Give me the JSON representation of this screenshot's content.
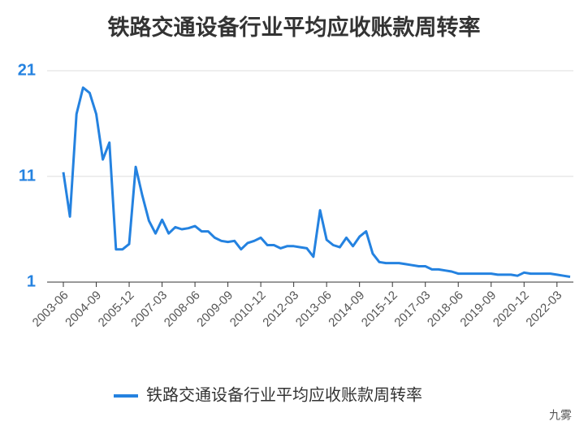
{
  "chart_data": {
    "type": "line",
    "title": "铁路交通设备行业平均应收账款周转率",
    "watermark": "九雾",
    "categories": [
      "2003-06",
      null,
      null,
      null,
      null,
      "2004-09",
      null,
      null,
      null,
      null,
      "2005-12",
      null,
      null,
      null,
      null,
      "2007-03",
      null,
      null,
      null,
      null,
      "2008-06",
      null,
      null,
      null,
      null,
      "2009-09",
      null,
      null,
      null,
      null,
      "2010-12",
      null,
      null,
      null,
      null,
      "2012-03",
      null,
      null,
      null,
      null,
      "2013-06",
      null,
      null,
      null,
      null,
      "2014-09",
      null,
      null,
      null,
      null,
      "2015-12",
      null,
      null,
      null,
      null,
      "2017-03",
      null,
      null,
      null,
      null,
      "2018-06",
      null,
      null,
      null,
      null,
      "2019-09",
      null,
      null,
      null,
      null,
      "2020-12",
      null,
      null,
      null,
      null,
      "2022-03",
      null,
      null
    ],
    "series": [
      {
        "name": "铁路交通设备行业平均应收账款周转率",
        "color": "#2482e0",
        "values": [
          11.4,
          7.2,
          16.9,
          19.4,
          18.9,
          16.9,
          12.6,
          14.2,
          4.1,
          4.1,
          4.6,
          11.9,
          9.2,
          6.8,
          5.6,
          6.9,
          5.6,
          6.2,
          6.0,
          6.1,
          6.3,
          5.8,
          5.8,
          5.2,
          4.9,
          4.8,
          4.9,
          4.1,
          4.7,
          4.9,
          5.2,
          4.5,
          4.5,
          4.2,
          4.4,
          4.4,
          4.3,
          4.2,
          3.4,
          7.8,
          5.0,
          4.5,
          4.3,
          5.2,
          4.4,
          5.3,
          5.8,
          3.7,
          2.9,
          2.8,
          2.8,
          2.8,
          2.7,
          2.6,
          2.5,
          2.5,
          2.2,
          2.2,
          2.1,
          2.0,
          1.8,
          1.8,
          1.8,
          1.8,
          1.8,
          1.8,
          1.7,
          1.7,
          1.7,
          1.6,
          1.9,
          1.8,
          1.8,
          1.8,
          1.8,
          1.7,
          1.6,
          1.5
        ]
      }
    ],
    "ylim": [
      1,
      21
    ],
    "yticks": [
      1,
      11,
      21
    ],
    "grid": true,
    "legend": "bottom"
  }
}
